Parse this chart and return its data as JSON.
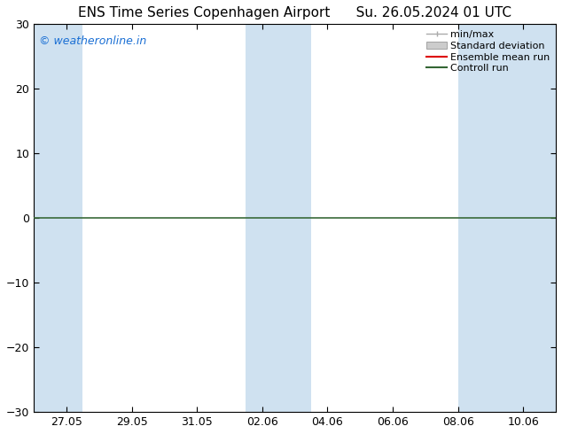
{
  "title": "ENS Time Series Copenhagen Airport      Su. 26.05.2024 01 UTC",
  "watermark": "© weatheronline.in",
  "ylim": [
    -30,
    30
  ],
  "yticks": [
    -30,
    -20,
    -10,
    0,
    10,
    20,
    30
  ],
  "x_min": 0,
  "x_max": 16,
  "xtick_labels": [
    "27.05",
    "29.05",
    "31.05",
    "02.06",
    "04.06",
    "06.06",
    "08.06",
    "10.06"
  ],
  "xtick_positions": [
    1,
    3,
    5,
    7,
    9,
    11,
    13,
    15
  ],
  "background_color": "#ffffff",
  "plot_bg_color": "#ffffff",
  "shaded_band_color": "#cfe1f0",
  "zero_line_color": "#3a6b3a",
  "shaded_regions": [
    [
      0,
      1.5
    ],
    [
      6.5,
      8.5
    ],
    [
      13.0,
      15.0
    ],
    [
      15.0,
      16.0
    ]
  ],
  "legend_min_max_color": "#aaaaaa",
  "legend_std_color": "#cccccc",
  "legend_ensemble_color": "#dd0000",
  "legend_control_color": "#336633",
  "figsize": [
    6.34,
    4.9
  ],
  "dpi": 100,
  "title_fontsize": 11,
  "tick_fontsize": 9,
  "watermark_fontsize": 9,
  "legend_fontsize": 8
}
